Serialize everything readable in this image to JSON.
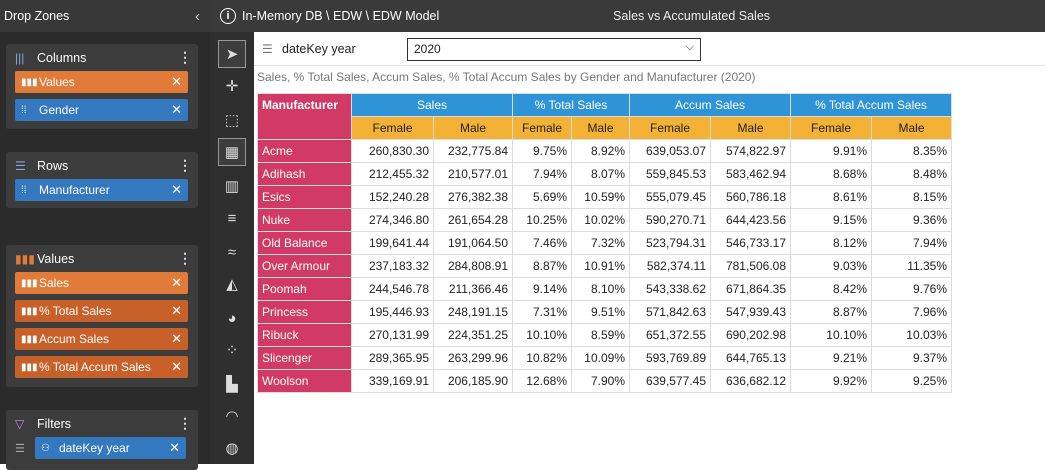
{
  "dropzones": {
    "title": "Drop Zones",
    "columns": {
      "title": "Columns",
      "items": [
        "Values",
        "Gender"
      ]
    },
    "rows": {
      "title": "Rows",
      "items": [
        "Manufacturer"
      ]
    },
    "values": {
      "title": "Values",
      "items": [
        "Sales",
        "% Total Sales",
        "Accum Sales",
        "% Total Accum Sales"
      ]
    },
    "filters": {
      "title": "Filters",
      "items": [
        "dateKey year"
      ]
    }
  },
  "topbar": {
    "path": "In-Memory DB \\ EDW \\ EDW Model",
    "title": "Sales vs Accumulated Sales"
  },
  "filter": {
    "label": "dateKey year",
    "value": "2020"
  },
  "subtitle": "Sales, % Total Sales, Accum Sales, % Total Accum Sales by Gender and Manufacturer (2020)",
  "table": {
    "row_header": "Manufacturer",
    "groups": [
      "Sales",
      "% Total Sales",
      "Accum Sales",
      "% Total Accum Sales"
    ],
    "subheaders": [
      "Female",
      "Male",
      "Female",
      "Male",
      "Female",
      "Male",
      "Female",
      "Male"
    ],
    "rows": [
      {
        "label": "Acme",
        "cells": [
          "260,830.30",
          "232,775.84",
          "9.75%",
          "8.92%",
          "639,053.07",
          "574,822.97",
          "9.91%",
          "8.35%"
        ]
      },
      {
        "label": "Adihash",
        "cells": [
          "212,455.32",
          "210,577.01",
          "7.94%",
          "8.07%",
          "559,845.53",
          "583,462.94",
          "8.68%",
          "8.48%"
        ]
      },
      {
        "label": "Esics",
        "cells": [
          "152,240.28",
          "276,382.38",
          "5.69%",
          "10.59%",
          "555,079.45",
          "560,786.18",
          "8.61%",
          "8.15%"
        ]
      },
      {
        "label": "Nuke",
        "cells": [
          "274,346.80",
          "261,654.28",
          "10.25%",
          "10.02%",
          "590,270.71",
          "644,423.56",
          "9.15%",
          "9.36%"
        ]
      },
      {
        "label": "Old Balance",
        "cells": [
          "199,641.44",
          "191,064.50",
          "7.46%",
          "7.32%",
          "523,794.31",
          "546,733.17",
          "8.12%",
          "7.94%"
        ]
      },
      {
        "label": "Over Armour",
        "cells": [
          "237,183.32",
          "284,808.91",
          "8.87%",
          "10.91%",
          "582,374.11",
          "781,506.08",
          "9.03%",
          "11.35%"
        ]
      },
      {
        "label": "Poomah",
        "cells": [
          "244,546.78",
          "211,366.46",
          "9.14%",
          "8.10%",
          "543,338.62",
          "671,864.35",
          "8.42%",
          "9.76%"
        ]
      },
      {
        "label": "Princess",
        "cells": [
          "195,446.93",
          "248,191.15",
          "7.31%",
          "9.51%",
          "571,842.63",
          "547,939.43",
          "8.87%",
          "7.96%"
        ]
      },
      {
        "label": "Ribuck",
        "cells": [
          "270,131.99",
          "224,351.25",
          "10.10%",
          "8.59%",
          "651,372.55",
          "690,202.98",
          "10.10%",
          "10.03%"
        ]
      },
      {
        "label": "Slicenger",
        "cells": [
          "289,365.95",
          "263,299.96",
          "10.82%",
          "10.09%",
          "593,769.89",
          "644,765.13",
          "9.21%",
          "9.37%"
        ]
      },
      {
        "label": "Woolson",
        "cells": [
          "339,169.91",
          "206,185.90",
          "12.68%",
          "7.90%",
          "639,577.45",
          "636,682.12",
          "9.92%",
          "9.25%"
        ]
      }
    ]
  },
  "icons": {
    "toolbar": [
      "pointer-icon",
      "crosshair-icon",
      "select-area-icon",
      "table-icon",
      "bar-chart-icon",
      "horizontal-bar-icon",
      "line-chart-icon",
      "area-chart-icon",
      "pie-chart-icon",
      "scatter-icon",
      "treemap-icon",
      "gauge-icon",
      "globe-icon"
    ]
  },
  "colors": {
    "manufacturer_header": "#d13a64",
    "group_header": "#2f93d8",
    "sub_header": "#f3b236",
    "pill_orange": "#e07b39",
    "pill_blue": "#3478c0"
  }
}
